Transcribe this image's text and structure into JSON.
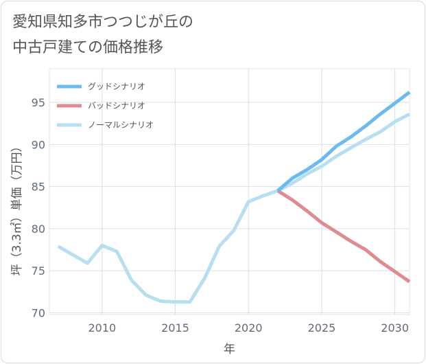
{
  "title_lines": [
    "愛知県知多市つつじが丘の",
    "中古戸建ての価格推移"
  ],
  "chart_data": {
    "type": "line",
    "xlabel": "年",
    "ylabel": "坪（3.3㎡）単価（万円）",
    "xlim": [
      2006.4,
      2031
    ],
    "ylim": [
      69.8,
      99
    ],
    "x_ticks": [
      2010,
      2015,
      2020,
      2025,
      2030
    ],
    "y_ticks": [
      70,
      75,
      80,
      85,
      90,
      95
    ],
    "legend_position": "top-left",
    "grid": true,
    "series": [
      {
        "name": "グッドシナリオ",
        "color": "#6bbaf0",
        "x": [
          2022,
          2023,
          2024,
          2025,
          2026,
          2027,
          2028,
          2029,
          2030,
          2031
        ],
        "y": [
          84.5,
          86.0,
          87.0,
          88.2,
          89.8,
          90.9,
          92.2,
          93.6,
          94.9,
          96.2
        ]
      },
      {
        "name": "バッドシナリオ",
        "color": "#e08a92",
        "x": [
          2022,
          2023,
          2024,
          2025,
          2026,
          2027,
          2028,
          2029,
          2030,
          2031
        ],
        "y": [
          84.5,
          83.4,
          82.1,
          80.7,
          79.6,
          78.5,
          77.5,
          76.1,
          74.9,
          73.7
        ]
      },
      {
        "name": "ノーマルシナリオ",
        "color": "#b8dff0",
        "x": [
          2007,
          2008,
          2009,
          2010,
          2011,
          2012,
          2013,
          2014,
          2015,
          2016,
          2017,
          2018,
          2019,
          2020,
          2021,
          2022,
          2023,
          2024,
          2025,
          2026,
          2027,
          2028,
          2029,
          2030,
          2031
        ],
        "y": [
          77.9,
          76.9,
          75.9,
          78.0,
          77.3,
          73.9,
          72.1,
          71.4,
          71.3,
          71.3,
          74.1,
          77.9,
          79.8,
          83.2,
          83.9,
          84.5,
          85.4,
          86.5,
          87.4,
          88.6,
          89.6,
          90.6,
          91.5,
          92.7,
          93.6
        ]
      }
    ]
  }
}
